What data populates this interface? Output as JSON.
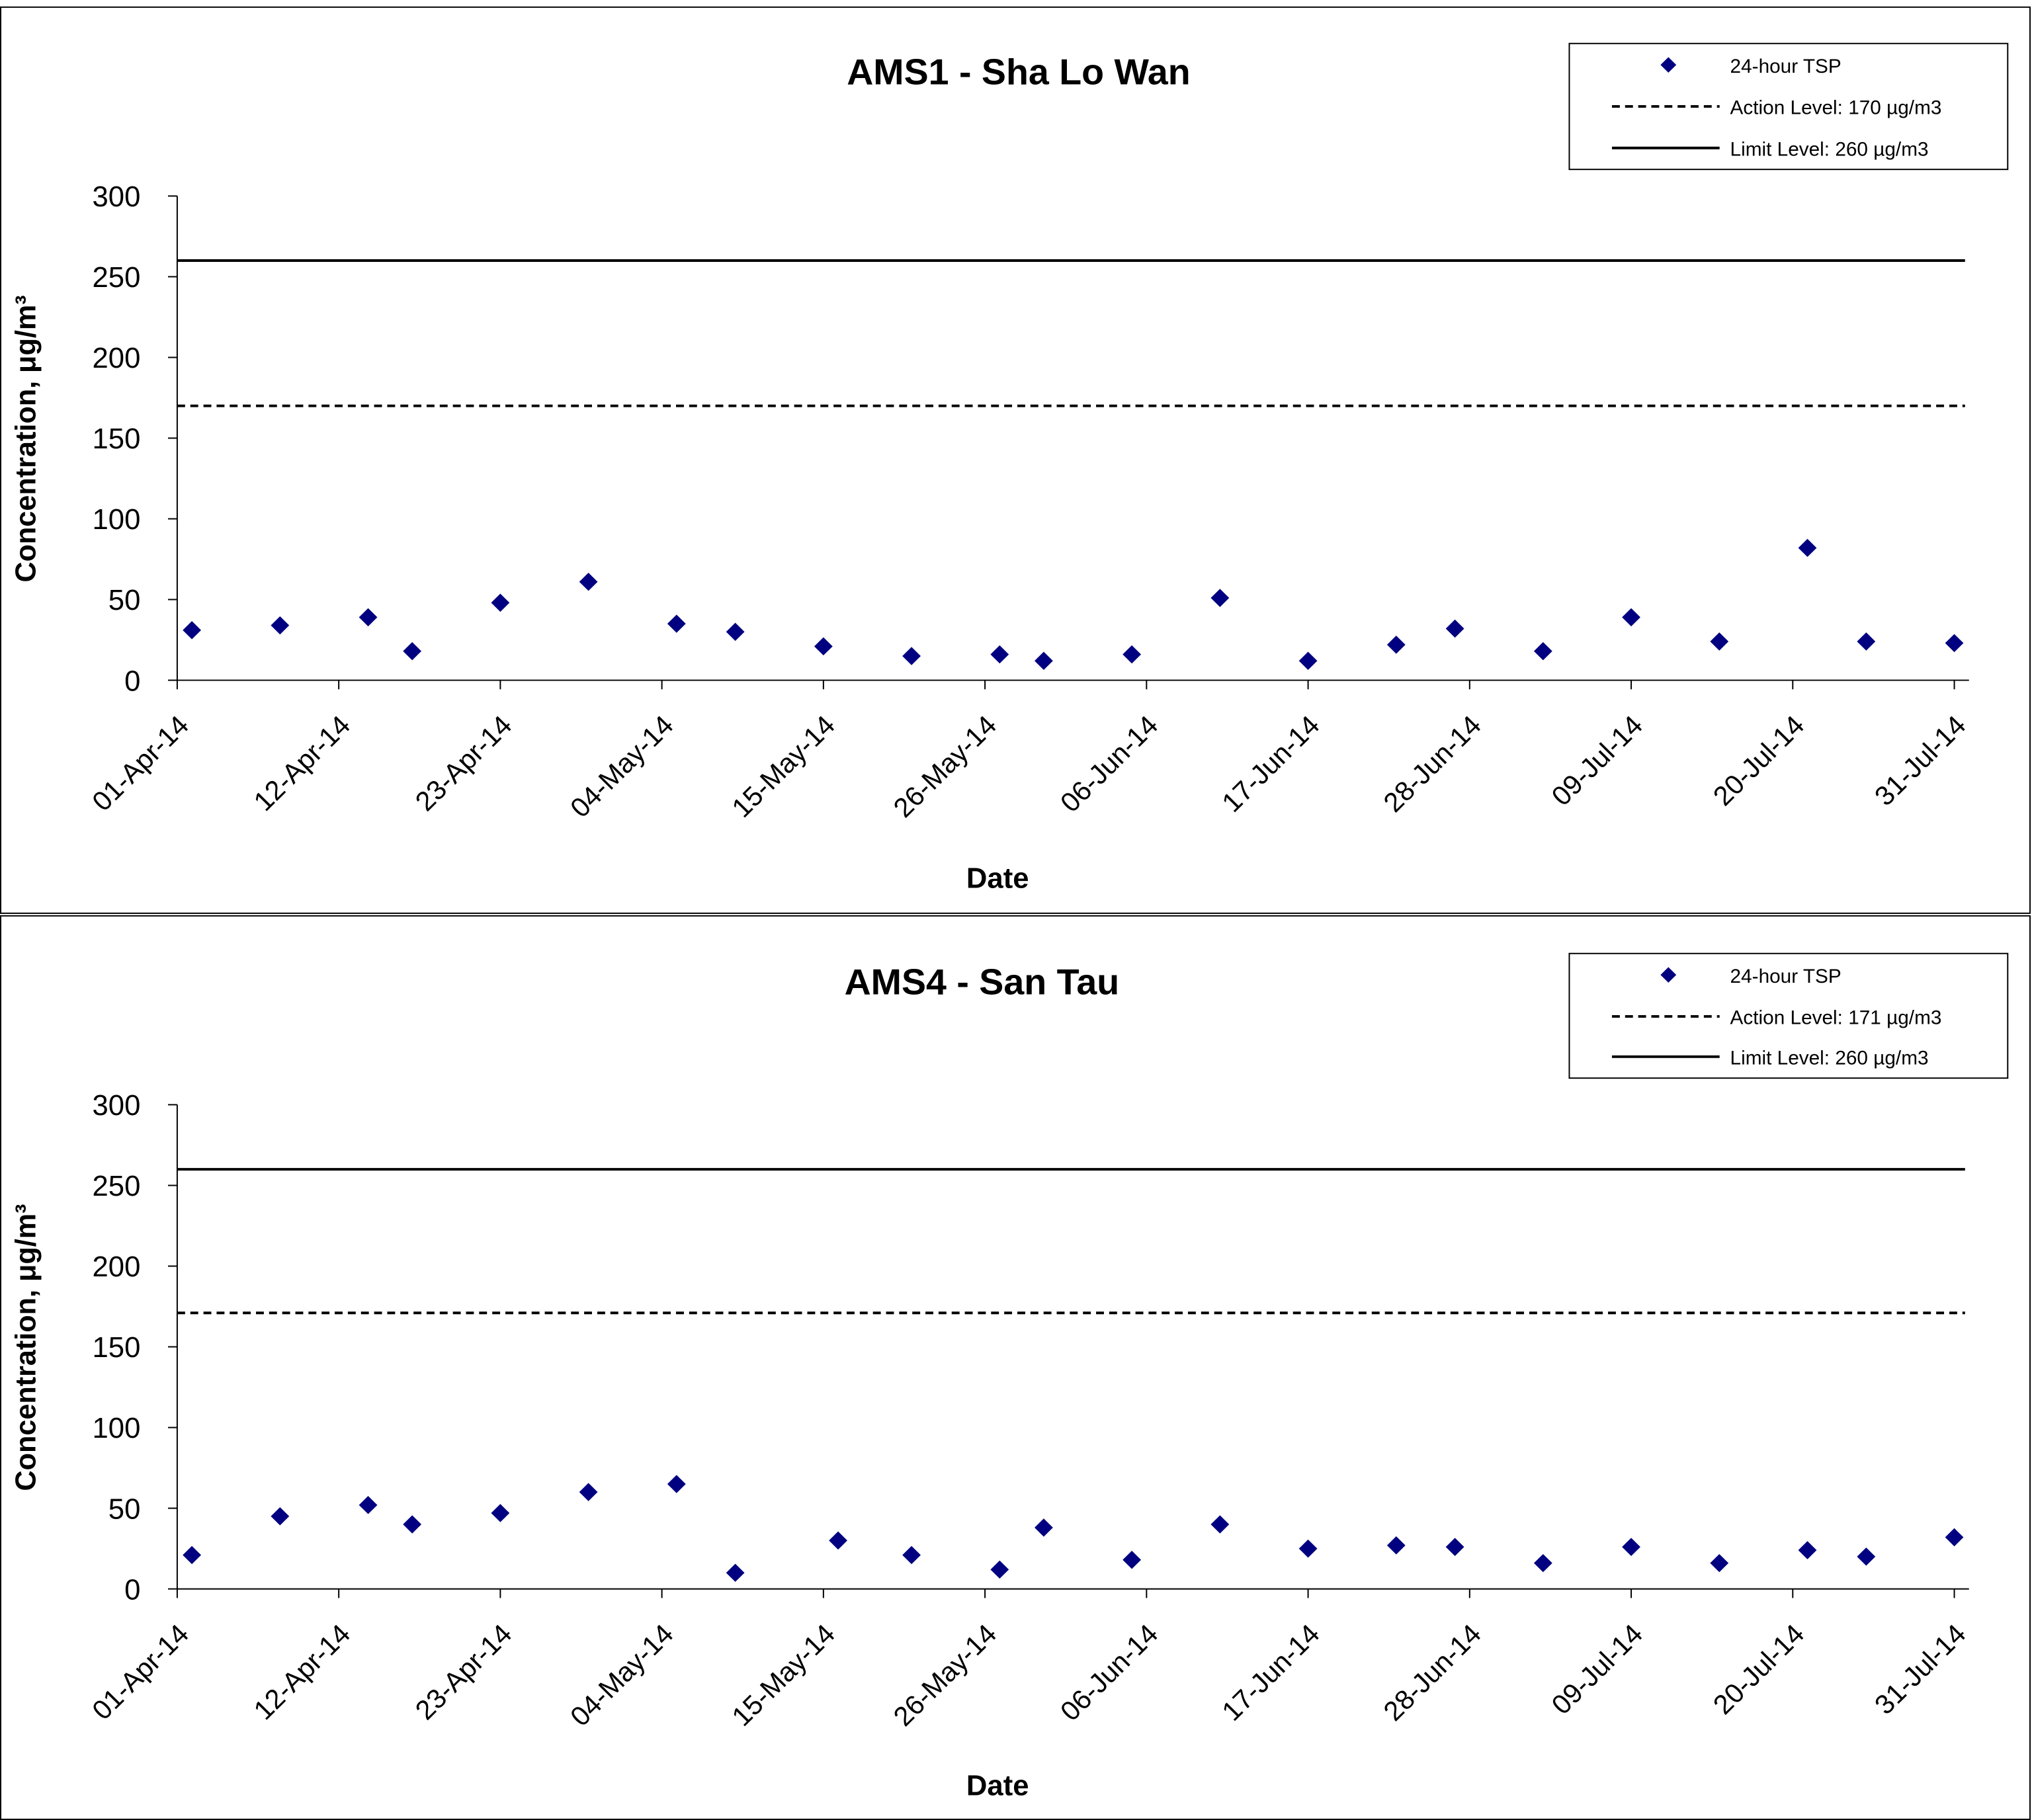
{
  "charts": [
    {
      "title": "AMS1 - Sha Lo Wan",
      "xlabel": "Date",
      "ylabel": "Concentration, μg/m³",
      "legend": {
        "series": "24-hour TSP",
        "action": "Action Level: 170 µg/m3",
        "limit": "Limit Level:  260 µg/m3"
      }
    },
    {
      "title": "AMS4 - San Tau",
      "xlabel": "Date",
      "ylabel": "Concentration, μg/m³",
      "legend": {
        "series": "24-hour TSP",
        "action": "Action Level: 171 µg/m3",
        "limit": "Limit Level:  260 µg/m3"
      }
    }
  ],
  "colors": {
    "marker": "#000080",
    "lines": "#000000",
    "frame": "#000000"
  },
  "chart_data": [
    {
      "type": "scatter",
      "title": "AMS1 - Sha Lo Wan",
      "xlabel": "Date",
      "ylabel": "Concentration, μg/m³",
      "x_ticks": [
        "01-Apr-14",
        "12-Apr-14",
        "23-Apr-14",
        "04-May-14",
        "15-May-14",
        "26-May-14",
        "06-Jun-14",
        "17-Jun-14",
        "28-Jun-14",
        "09-Jul-14",
        "20-Jul-14",
        "31-Jul-14"
      ],
      "y_ticks": [
        "0",
        "50",
        "100",
        "150",
        "200",
        "250",
        "300"
      ],
      "ylim": [
        0,
        300
      ],
      "xlim": [
        "2014-04-01",
        "2014-08-01"
      ],
      "legend_position": "top-right",
      "series": [
        {
          "name": "24-hour TSP",
          "points": [
            {
              "date": "2014-04-02",
              "value": 31
            },
            {
              "date": "2014-04-08",
              "value": 34
            },
            {
              "date": "2014-04-14",
              "value": 39
            },
            {
              "date": "2014-04-17",
              "value": 18
            },
            {
              "date": "2014-04-23",
              "value": 48
            },
            {
              "date": "2014-04-29",
              "value": 61
            },
            {
              "date": "2014-05-05",
              "value": 35
            },
            {
              "date": "2014-05-09",
              "value": 30
            },
            {
              "date": "2014-05-15",
              "value": 21
            },
            {
              "date": "2014-05-21",
              "value": 15
            },
            {
              "date": "2014-05-27",
              "value": 16
            },
            {
              "date": "2014-05-30",
              "value": 12
            },
            {
              "date": "2014-06-05",
              "value": 16
            },
            {
              "date": "2014-06-11",
              "value": 51
            },
            {
              "date": "2014-06-17",
              "value": 12
            },
            {
              "date": "2014-06-23",
              "value": 22
            },
            {
              "date": "2014-06-27",
              "value": 32
            },
            {
              "date": "2014-07-03",
              "value": 18
            },
            {
              "date": "2014-07-09",
              "value": 39
            },
            {
              "date": "2014-07-15",
              "value": 24
            },
            {
              "date": "2014-07-21",
              "value": 82
            },
            {
              "date": "2014-07-25",
              "value": 24
            },
            {
              "date": "2014-07-31",
              "value": 23
            }
          ]
        },
        {
          "name": "Action Level: 170 µg/m3",
          "type": "hline",
          "value": 170,
          "style": "dashed"
        },
        {
          "name": "Limit Level:  260 µg/m3",
          "type": "hline",
          "value": 260,
          "style": "solid"
        }
      ]
    },
    {
      "type": "scatter",
      "title": "AMS4 - San Tau",
      "xlabel": "Date",
      "ylabel": "Concentration, μg/m³",
      "x_ticks": [
        "01-Apr-14",
        "12-Apr-14",
        "23-Apr-14",
        "04-May-14",
        "15-May-14",
        "26-May-14",
        "06-Jun-14",
        "17-Jun-14",
        "28-Jun-14",
        "09-Jul-14",
        "20-Jul-14",
        "31-Jul-14"
      ],
      "y_ticks": [
        "0",
        "50",
        "100",
        "150",
        "200",
        "250",
        "300"
      ],
      "ylim": [
        0,
        300
      ],
      "xlim": [
        "2014-04-01",
        "2014-08-01"
      ],
      "legend_position": "top-right",
      "series": [
        {
          "name": "24-hour TSP",
          "points": [
            {
              "date": "2014-04-02",
              "value": 21
            },
            {
              "date": "2014-04-08",
              "value": 45
            },
            {
              "date": "2014-04-14",
              "value": 52
            },
            {
              "date": "2014-04-17",
              "value": 40
            },
            {
              "date": "2014-04-23",
              "value": 47
            },
            {
              "date": "2014-04-29",
              "value": 60
            },
            {
              "date": "2014-05-05",
              "value": 65
            },
            {
              "date": "2014-05-09",
              "value": 10
            },
            {
              "date": "2014-05-16",
              "value": 30
            },
            {
              "date": "2014-05-21",
              "value": 21
            },
            {
              "date": "2014-05-27",
              "value": 12
            },
            {
              "date": "2014-05-30",
              "value": 38
            },
            {
              "date": "2014-06-05",
              "value": 18
            },
            {
              "date": "2014-06-11",
              "value": 40
            },
            {
              "date": "2014-06-17",
              "value": 25
            },
            {
              "date": "2014-06-23",
              "value": 27
            },
            {
              "date": "2014-06-27",
              "value": 26
            },
            {
              "date": "2014-07-03",
              "value": 16
            },
            {
              "date": "2014-07-09",
              "value": 26
            },
            {
              "date": "2014-07-15",
              "value": 16
            },
            {
              "date": "2014-07-21",
              "value": 24
            },
            {
              "date": "2014-07-25",
              "value": 20
            },
            {
              "date": "2014-07-31",
              "value": 32
            }
          ]
        },
        {
          "name": "Action Level: 171 µg/m3",
          "type": "hline",
          "value": 171,
          "style": "dashed"
        },
        {
          "name": "Limit Level:  260 µg/m3",
          "type": "hline",
          "value": 260,
          "style": "solid"
        }
      ]
    }
  ]
}
